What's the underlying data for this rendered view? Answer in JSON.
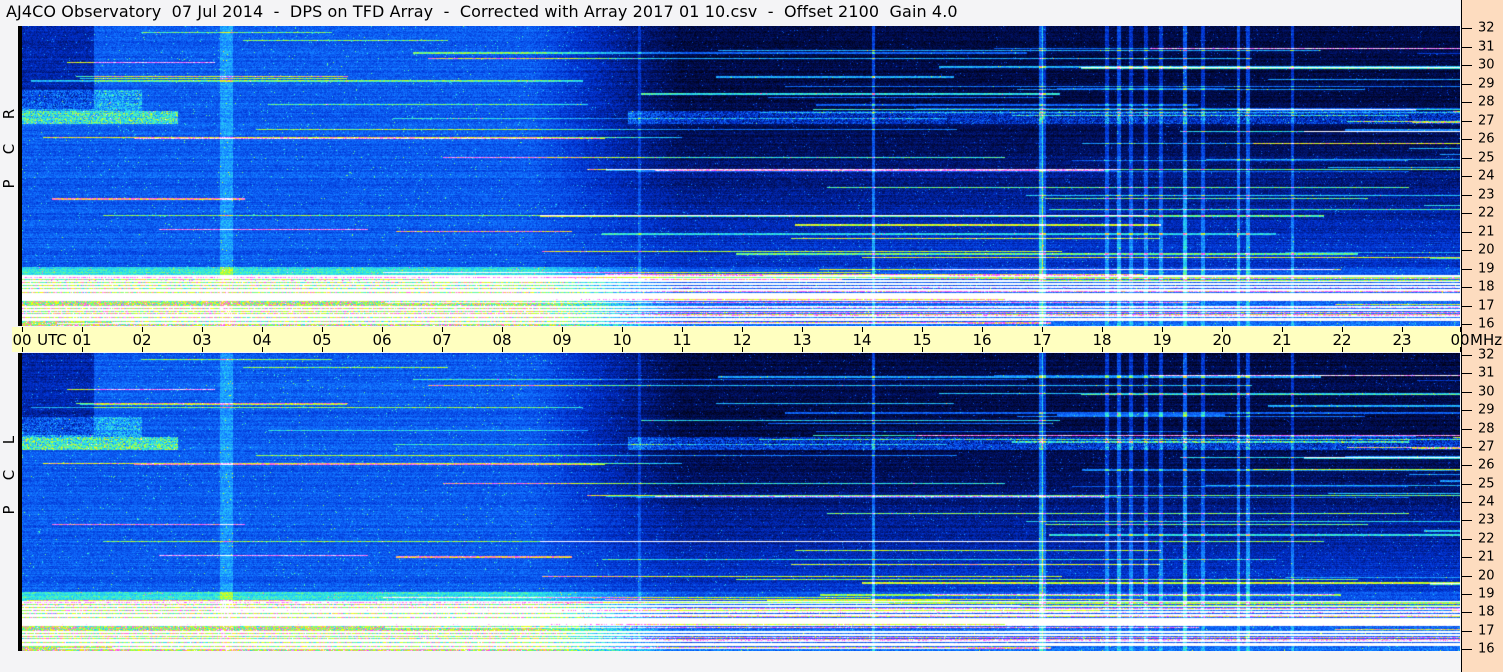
{
  "title": "AJ4CO Observatory  07 Jul 2014  -  DPS on TFD Array  -  Corrected with Array 2017 01 10.csv  -  Offset 2100  Gain 4.0",
  "chart_data": {
    "type": "heatmap",
    "subtype": "dynamic spectrogram",
    "title": "AJ4CO Observatory  07 Jul 2014  -  DPS on TFD Array  -  Corrected with Array 2017 01 10.csv  -  Offset 2100  Gain 4.0",
    "xlabel": "UTC",
    "ylabel_unit": "MHz",
    "xlim": [
      0,
      24
    ],
    "ylim": [
      16,
      32
    ],
    "x_tick_labels": [
      "00",
      "01",
      "02",
      "03",
      "04",
      "05",
      "06",
      "07",
      "08",
      "09",
      "10",
      "11",
      "12",
      "13",
      "14",
      "15",
      "16",
      "17",
      "18",
      "19",
      "20",
      "21",
      "22",
      "23",
      "00"
    ],
    "y_tick_labels": [
      "16",
      "17",
      "18",
      "19",
      "20",
      "21",
      "22",
      "23",
      "24",
      "25",
      "26",
      "27",
      "28",
      "29",
      "30",
      "31",
      "32"
    ],
    "panels": [
      {
        "label": [
          "R",
          "C",
          "P"
        ]
      },
      {
        "label": [
          "L",
          "C",
          "P"
        ]
      }
    ],
    "colormap": [
      "#000010",
      "#001060",
      "#0030d0",
      "#1070ff",
      "#20b0ff",
      "#30f0e0",
      "#a0ff40",
      "#ffff00",
      "#ff40ff",
      "#ffffff"
    ],
    "grid": false
  },
  "colors": {
    "axis_band": "#ffffc0",
    "freq_axis_panel": "#fddcbf",
    "background": "#f4f4f6"
  }
}
